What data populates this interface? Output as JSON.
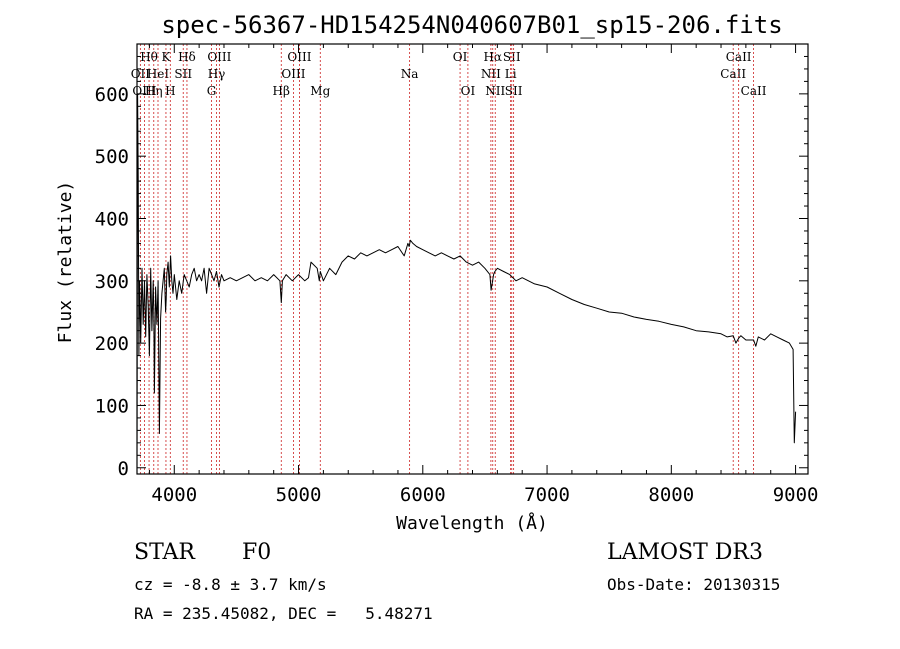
{
  "chart_data": {
    "type": "line",
    "title": "spec-56367-HD154254N040607B01_sp15-206.fits",
    "xlabel": "Wavelength (Å)",
    "ylabel": "Flux (relative)",
    "xlim": [
      3700,
      9100
    ],
    "ylim": [
      -10,
      680
    ],
    "xticks": [
      4000,
      5000,
      6000,
      7000,
      8000,
      9000
    ],
    "yticks": [
      0,
      100,
      200,
      300,
      400,
      500,
      600
    ],
    "series": [
      {
        "name": "flux",
        "x": [
          3700,
          3705,
          3710,
          3715,
          3720,
          3725,
          3730,
          3740,
          3750,
          3760,
          3770,
          3780,
          3790,
          3800,
          3810,
          3820,
          3830,
          3835,
          3840,
          3850,
          3860,
          3870,
          3880,
          3890,
          3900,
          3910,
          3920,
          3930,
          3935,
          3940,
          3950,
          3960,
          3970,
          3980,
          3990,
          4000,
          4020,
          4040,
          4060,
          4080,
          4100,
          4120,
          4140,
          4160,
          4180,
          4200,
          4220,
          4240,
          4260,
          4280,
          4300,
          4320,
          4340,
          4360,
          4380,
          4400,
          4450,
          4500,
          4550,
          4600,
          4650,
          4700,
          4750,
          4800,
          4850,
          4861,
          4870,
          4900,
          4950,
          5000,
          5050,
          5080,
          5100,
          5150,
          5167,
          5175,
          5200,
          5250,
          5300,
          5350,
          5400,
          5450,
          5500,
          5550,
          5600,
          5650,
          5700,
          5750,
          5800,
          5850,
          5880,
          5890,
          5900,
          5920,
          5950,
          6000,
          6050,
          6100,
          6150,
          6200,
          6250,
          6300,
          6350,
          6400,
          6450,
          6500,
          6540,
          6550,
          6562,
          6570,
          6580,
          6600,
          6650,
          6700,
          6750,
          6800,
          6900,
          7000,
          7100,
          7200,
          7300,
          7400,
          7500,
          7600,
          7700,
          7800,
          7900,
          8000,
          8100,
          8200,
          8300,
          8400,
          8450,
          8498,
          8520,
          8542,
          8560,
          8600,
          8662,
          8680,
          8700,
          8750,
          8800,
          8850,
          8900,
          8950,
          8980,
          8990,
          9000
        ],
        "y": [
          10,
          600,
          470,
          180,
          300,
          260,
          200,
          320,
          230,
          300,
          210,
          310,
          260,
          180,
          320,
          220,
          300,
          250,
          120,
          290,
          230,
          300,
          55,
          240,
          280,
          300,
          320,
          250,
          270,
          310,
          330,
          290,
          340,
          300,
          280,
          310,
          270,
          300,
          280,
          310,
          300,
          290,
          310,
          320,
          300,
          310,
          300,
          320,
          280,
          320,
          310,
          300,
          315,
          290,
          310,
          300,
          305,
          300,
          305,
          310,
          300,
          305,
          300,
          310,
          300,
          265,
          300,
          310,
          300,
          310,
          300,
          305,
          330,
          320,
          300,
          315,
          300,
          320,
          310,
          330,
          340,
          335,
          345,
          340,
          345,
          350,
          345,
          350,
          355,
          340,
          360,
          355,
          365,
          360,
          355,
          350,
          345,
          340,
          345,
          340,
          335,
          340,
          330,
          325,
          330,
          320,
          310,
          285,
          300,
          310,
          315,
          320,
          315,
          310,
          300,
          305,
          295,
          290,
          280,
          270,
          262,
          256,
          250,
          248,
          242,
          238,
          235,
          230,
          226,
          220,
          218,
          215,
          210,
          212,
          200,
          208,
          212,
          205,
          205,
          195,
          210,
          205,
          215,
          210,
          205,
          200,
          190,
          40,
          90
        ]
      }
    ],
    "line_markers": [
      {
        "label": "OII",
        "x": 3727,
        "row": 2
      },
      {
        "label": "OIII",
        "x": 3760,
        "row": 3
      },
      {
        "label": "Hθ",
        "x": 3797,
        "row": 1
      },
      {
        "label": "Hη",
        "x": 3835,
        "row": 3
      },
      {
        "label": "HeI",
        "x": 3869,
        "row": 2
      },
      {
        "label": "K",
        "x": 3933,
        "row": 1
      },
      {
        "label": "H",
        "x": 3968,
        "row": 3
      },
      {
        "label": "SII",
        "x": 4072,
        "row": 2
      },
      {
        "label": "Hδ",
        "x": 4102,
        "row": 1
      },
      {
        "label": "G",
        "x": 4300,
        "row": 3
      },
      {
        "label": "Hγ",
        "x": 4340,
        "row": 2
      },
      {
        "label": "OIII",
        "x": 4363,
        "row": 1
      },
      {
        "label": "Hβ",
        "x": 4861,
        "row": 3
      },
      {
        "label": "OIII",
        "x": 4959,
        "row": 2
      },
      {
        "label": "OIII",
        "x": 5007,
        "row": 1
      },
      {
        "label": "Mg",
        "x": 5175,
        "row": 3
      },
      {
        "label": "Na",
        "x": 5894,
        "row": 2
      },
      {
        "label": "OI",
        "x": 6300,
        "row": 1
      },
      {
        "label": "OI",
        "x": 6363,
        "row": 3
      },
      {
        "label": "NII",
        "x": 6548,
        "row": 2
      },
      {
        "label": "Hα",
        "x": 6563,
        "row": 1
      },
      {
        "label": "NII",
        "x": 6583,
        "row": 3
      },
      {
        "label": "Li",
        "x": 6707,
        "row": 2
      },
      {
        "label": "SII",
        "x": 6716,
        "row": 1
      },
      {
        "label": "SII",
        "x": 6731,
        "row": 3
      },
      {
        "label": "CaII",
        "x": 8498,
        "row": 2
      },
      {
        "label": "CaII",
        "x": 8542,
        "row": 1
      },
      {
        "label": "CaII",
        "x": 8662,
        "row": 3
      }
    ]
  },
  "info": {
    "class_label": "STAR",
    "subclass": "F0",
    "survey": "LAMOST DR3",
    "cz": "cz = -8.8 ± 3.7 km/s",
    "obs_date": "Obs-Date: 20130315",
    "coords": "RA = 235.45082, DEC =   5.48271"
  },
  "colors": {
    "line": "#000000",
    "marker": "#cc2222",
    "text": "#000000"
  }
}
